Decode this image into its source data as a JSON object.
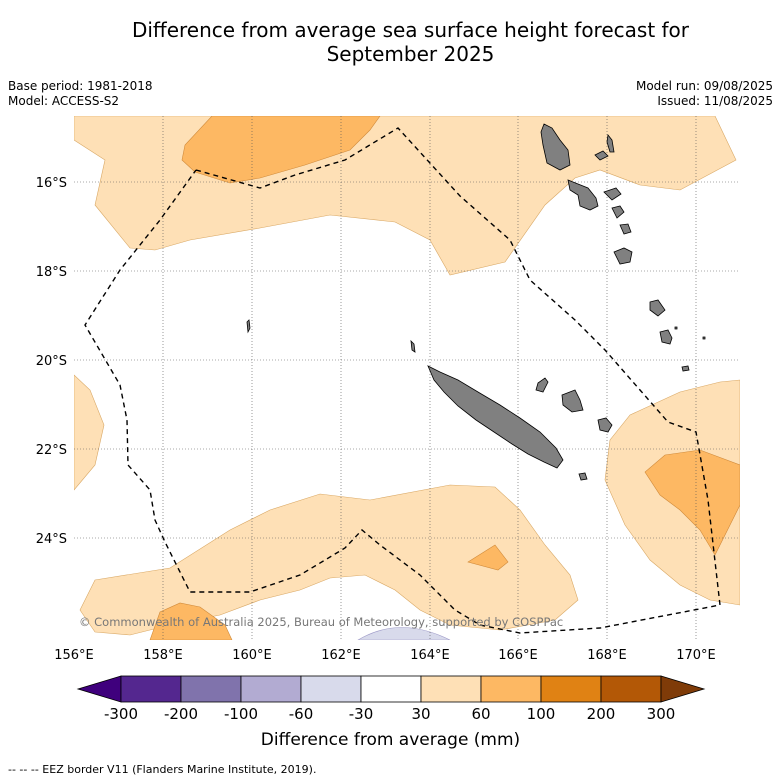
{
  "title": {
    "line1": "Difference from average sea surface height forecast for",
    "line2": "September 2025"
  },
  "meta_left": {
    "base_period": "Base period: 1981-2018",
    "model": "Model: ACCESS-S2"
  },
  "meta_right": {
    "model_run": "Model run: 09/08/2025",
    "issued": "Issued: 11/08/2025"
  },
  "map": {
    "lat_labels": [
      "16°S",
      "18°S",
      "20°S",
      "22°S",
      "24°S"
    ],
    "lon_labels": [
      "156°E",
      "158°E",
      "160°E",
      "162°E",
      "164°E",
      "166°E",
      "168°E",
      "170°E"
    ],
    "copyright": "© Commonwealth of Australia 2025, Bureau of Meteorology, supported by COSPPac",
    "land_color": "#808080"
  },
  "colorbar": {
    "tick_labels": [
      "-300",
      "-200",
      "-100",
      "-60",
      "-30",
      "30",
      "60",
      "100",
      "200",
      "300"
    ],
    "colors": [
      "#3f007d",
      "#54278f",
      "#8073ac",
      "#b2abd2",
      "#d8daeb",
      "#ffffff",
      "#fee0b6",
      "#fdb863",
      "#e08214",
      "#b35806",
      "#7f3b08"
    ],
    "label": "Difference from average (mm)"
  },
  "footnote": "-- -- -- EEZ border V11 (Flanders Marine Institute, 2019)."
}
